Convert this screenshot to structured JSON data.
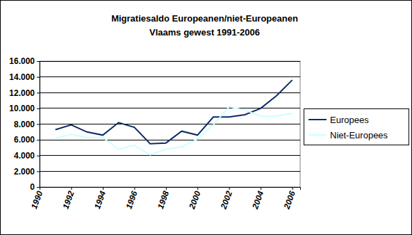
{
  "chart_data": {
    "type": "line",
    "title": [
      "Migratiesaldo Europeanen/niet-Europeanen",
      "Vlaams gewest 1991-2006"
    ],
    "x": [
      1991,
      1992,
      1993,
      1994,
      1995,
      1996,
      1997,
      1998,
      1999,
      2000,
      2001,
      2002,
      2003,
      2004,
      2005,
      2006
    ],
    "series": [
      {
        "name": "Europees",
        "color": "#0b2a66",
        "values": [
          7300,
          7900,
          7000,
          6600,
          8200,
          7600,
          5500,
          5600,
          7100,
          6600,
          8900,
          8900,
          9200,
          10000,
          11600,
          13600
        ]
      },
      {
        "name": "Niet-Europees",
        "color": "#ccffff",
        "values": [
          6200,
          6700,
          6300,
          6300,
          4800,
          5300,
          4100,
          4800,
          5100,
          6100,
          7900,
          10200,
          9800,
          9000,
          9000,
          9400
        ]
      }
    ],
    "xlim": [
      1990,
      2006.5
    ],
    "xticks": [
      1990,
      1992,
      1994,
      1996,
      1998,
      2000,
      2002,
      2004,
      2006
    ],
    "ylim": [
      0,
      16000
    ],
    "yticks": [
      0,
      {
        "value": 2000,
        "label": "2.000"
      },
      {
        "value": 4000,
        "label": "4.000"
      },
      {
        "value": 6000,
        "label": "6.000"
      },
      {
        "value": 8000,
        "label": "8.000"
      },
      {
        "value": 10000,
        "label": "10.000"
      },
      {
        "value": 12000,
        "label": "12.000"
      },
      {
        "value": 14000,
        "label": "14.000"
      },
      {
        "value": 16000,
        "label": "16.000"
      }
    ],
    "grid": true,
    "legend": "right"
  }
}
